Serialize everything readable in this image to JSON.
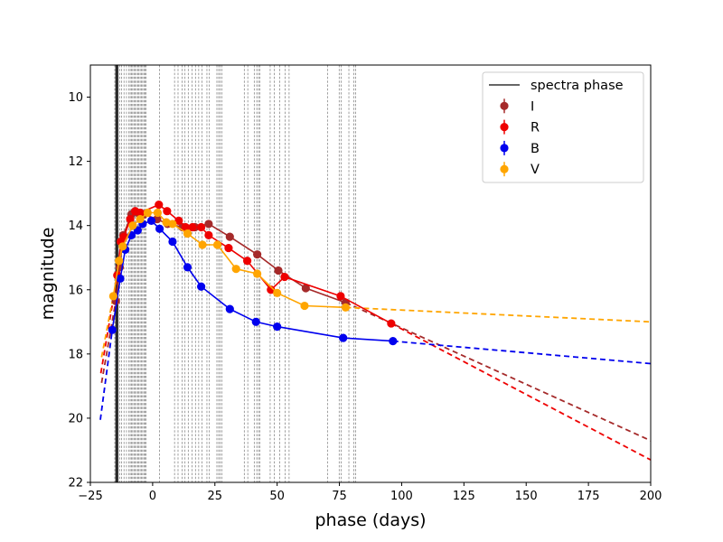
{
  "chart_data": {
    "type": "line",
    "xlabel": "phase (days)",
    "ylabel": "magnitude",
    "xlim": [
      -25,
      200
    ],
    "ylim": [
      22,
      9
    ],
    "y_inverted": true,
    "xticks": [
      -25,
      0,
      25,
      50,
      75,
      100,
      125,
      150,
      175,
      200
    ],
    "yticks": [
      10,
      12,
      14,
      16,
      18,
      20,
      22
    ],
    "grid": false,
    "legend_position": "top-right",
    "spectra_phase": {
      "name": "spectra phase",
      "color": "#404040",
      "solid_x": [
        -14.8,
        -14.5,
        -14.2,
        -13.9
      ],
      "dashed_x": [
        -15.2,
        -13.2,
        -12.5,
        -11.5,
        -10.5,
        -9.5,
        -9.0,
        -8.5,
        -8.0,
        -7.5,
        -7.0,
        -6.5,
        -6.0,
        -5.5,
        -5.0,
        -4.5,
        -4.0,
        -3.5,
        -3.0,
        -2.6,
        2.8,
        8.8,
        10.2,
        11.8,
        13.0,
        14.3,
        15.8,
        17.2,
        18.5,
        19.8,
        21.8,
        22.8,
        25.8,
        26.5,
        27.1,
        27.8,
        36.8,
        38.2,
        40.8,
        41.8,
        42.5,
        43.1,
        47.2,
        48.8,
        51.0,
        53.2,
        54.8,
        70.2,
        74.9,
        75.7,
        78.8,
        80.8,
        81.5
      ]
    },
    "series": [
      {
        "name": "I",
        "color": "#a52a2a",
        "x": [
          -14.8,
          -13.2,
          -11.8,
          -8.5,
          -6.0,
          -3.5,
          1.8,
          6.0,
          12.0,
          17.0,
          22.5,
          31.0,
          42.0,
          50.5,
          61.5,
          77.5
        ],
        "y": [
          16.35,
          15.3,
          14.3,
          13.65,
          13.6,
          13.65,
          13.8,
          13.95,
          14.05,
          14.05,
          13.95,
          14.35,
          14.9,
          15.4,
          15.95,
          16.4
        ],
        "fit_x": [
          77.5,
          200
        ],
        "fit_y": [
          16.4,
          20.7
        ]
      },
      {
        "name": "R",
        "color": "#ee0000",
        "x": [
          -14.2,
          -12.8,
          -11.5,
          -9.0,
          -7.0,
          -5.0,
          2.5,
          5.8,
          10.5,
          13.2,
          16.0,
          19.5,
          22.5,
          30.5,
          38.0,
          47.5,
          53.0,
          75.5,
          95.8
        ],
        "y": [
          15.55,
          14.5,
          14.35,
          13.8,
          13.55,
          13.6,
          13.35,
          13.55,
          13.85,
          14.05,
          14.05,
          14.05,
          14.3,
          14.7,
          15.1,
          16.0,
          15.6,
          16.2,
          17.05
        ],
        "fit_x": [
          95.8,
          200
        ],
        "fit_y": [
          17.05,
          21.3
        ]
      },
      {
        "name": "B",
        "color": "#0000ee",
        "x": [
          -16.2,
          -13.0,
          -11.0,
          -8.5,
          -6.0,
          -4.0,
          -0.5,
          2.8,
          8.0,
          14.0,
          19.5,
          31.0,
          41.5,
          50.0,
          76.5,
          96.5
        ],
        "y": [
          17.25,
          15.65,
          14.75,
          14.3,
          14.15,
          13.95,
          13.85,
          14.1,
          14.5,
          15.3,
          15.9,
          16.6,
          17.0,
          17.15,
          17.5,
          17.6
        ],
        "fit_x": [
          96.5,
          200
        ],
        "fit_y": [
          17.6,
          18.3
        ]
      },
      {
        "name": "V",
        "color": "#ffa500",
        "x": [
          -15.8,
          -13.5,
          -12.0,
          -8.0,
          -5.0,
          -2.0,
          2.0,
          5.5,
          8.0,
          14.0,
          20.0,
          26.0,
          33.5,
          42.0,
          50.0,
          61.0,
          77.5
        ],
        "y": [
          16.2,
          15.1,
          14.65,
          14.0,
          13.8,
          13.6,
          13.6,
          13.9,
          13.95,
          14.25,
          14.6,
          14.6,
          15.35,
          15.5,
          16.1,
          16.5,
          16.55
        ],
        "fit_x": [
          77.5,
          200
        ],
        "fit_y": [
          16.55,
          17.0
        ]
      }
    ],
    "early_dashed": [
      {
        "color": "#a52a2a",
        "x": [
          -20.5,
          -14.8
        ],
        "y": [
          18.9,
          16.35
        ]
      },
      {
        "color": "#ee0000",
        "x": [
          -20.8,
          -14.2
        ],
        "y": [
          18.6,
          15.55
        ]
      },
      {
        "color": "#0000ee",
        "x": [
          -21.0,
          -16.2
        ],
        "y": [
          20.05,
          17.25
        ]
      },
      {
        "color": "#ffa500",
        "x": [
          -20.5,
          -15.8
        ],
        "y": [
          18.1,
          16.2
        ]
      }
    ]
  }
}
